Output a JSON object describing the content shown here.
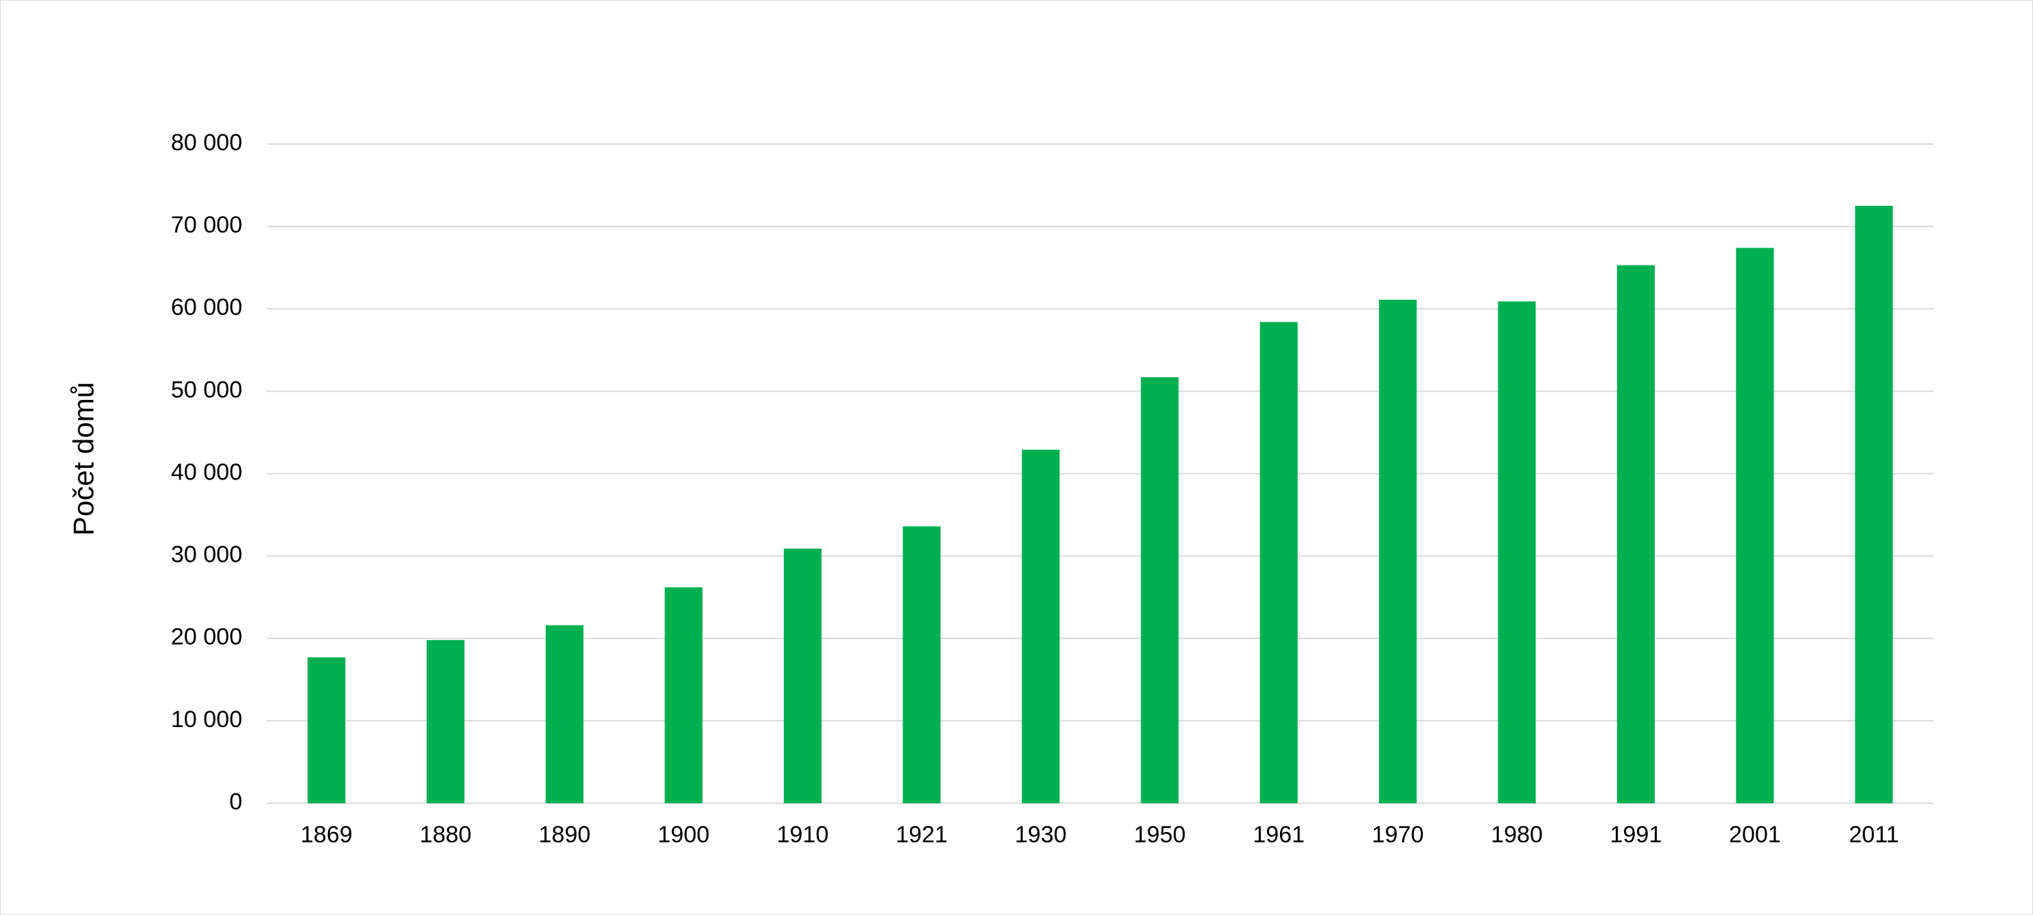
{
  "chart_data": {
    "type": "bar",
    "title": "",
    "xlabel": "",
    "ylabel": "Počet domů",
    "categories": [
      "1869",
      "1880",
      "1890",
      "1900",
      "1910",
      "1921",
      "1930",
      "1950",
      "1961",
      "1970",
      "1980",
      "1991",
      "2001",
      "2011"
    ],
    "values": [
      17700,
      19800,
      21600,
      26200,
      30900,
      33600,
      42900,
      51700,
      58400,
      61100,
      60900,
      65300,
      67400,
      72500
    ],
    "ylim": [
      0,
      80000
    ],
    "yticks": [
      0,
      10000,
      20000,
      30000,
      40000,
      50000,
      60000,
      70000,
      80000
    ],
    "ytick_labels": [
      "0",
      "10 000",
      "20 000",
      "30 000",
      "40 000",
      "50 000",
      "60 000",
      "70 000",
      "80 000"
    ],
    "grid": true,
    "legend": "none",
    "bar_color": "#00b050",
    "grid_color": "#d9d9d9"
  }
}
